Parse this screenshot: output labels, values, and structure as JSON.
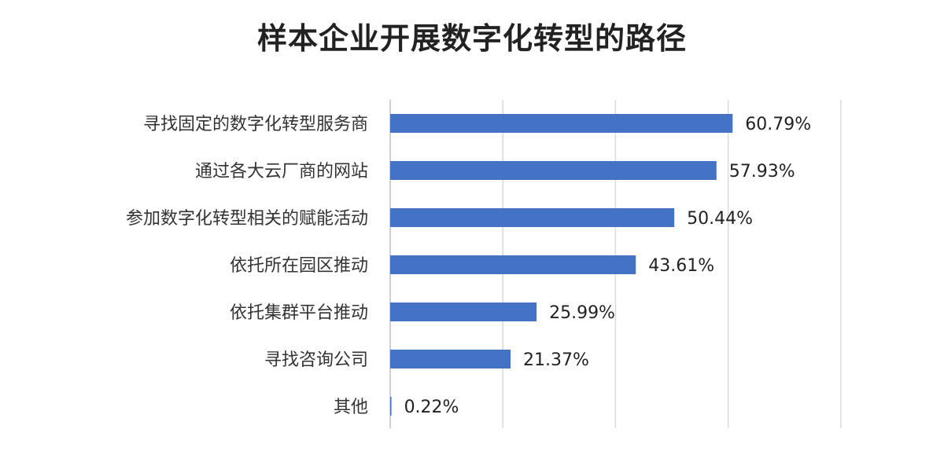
{
  "chart_data": {
    "type": "bar",
    "orientation": "horizontal",
    "title": "样本企业开展数字化转型的路径",
    "categories": [
      "寻找固定的数字化转型服务商",
      "通过各大云厂商的网站",
      "参加数字化转型相关的赋能活动",
      "依托所在园区推动",
      "依托集群平台推动",
      "寻找咨询公司",
      "其他"
    ],
    "values": [
      60.79,
      57.93,
      50.44,
      43.61,
      25.99,
      21.37,
      0.22
    ],
    "value_labels": [
      "60.79%",
      "57.93%",
      "50.44%",
      "43.61%",
      "25.99%",
      "21.37%",
      "0.22%"
    ],
    "xlim": [
      0,
      80
    ],
    "grid": true,
    "legend": "none",
    "bar_color": "#4472C4"
  }
}
